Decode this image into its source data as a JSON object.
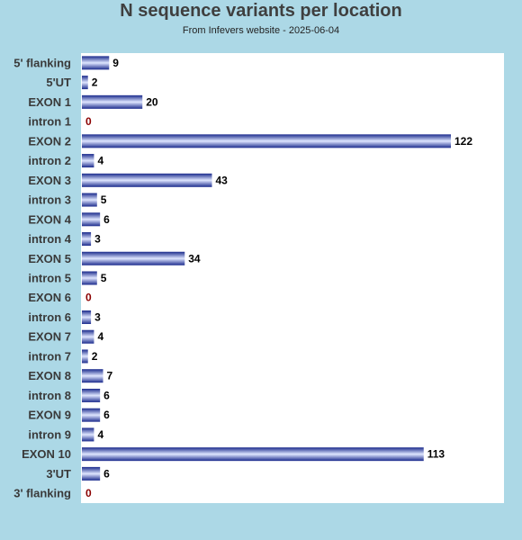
{
  "chart_data": {
    "type": "bar",
    "orientation": "horizontal",
    "title": "N sequence variants per location",
    "subtitle": "From Infevers website - 2025-06-04",
    "categories": [
      "5' flanking",
      "5'UT",
      "EXON 1",
      "intron 1",
      "EXON 2",
      "intron 2",
      "EXON 3",
      "intron 3",
      "EXON 4",
      "intron 4",
      "EXON 5",
      "intron 5",
      "EXON 6",
      "intron 6",
      "EXON 7",
      "intron 7",
      "EXON 8",
      "intron 8",
      "EXON 9",
      "intron 9",
      "EXON 10",
      "3'UT",
      "3' flanking"
    ],
    "values": [
      9,
      2,
      20,
      0,
      122,
      4,
      43,
      5,
      6,
      3,
      34,
      5,
      0,
      3,
      4,
      2,
      7,
      6,
      6,
      4,
      113,
      6,
      0
    ],
    "xlim": [
      0,
      140
    ],
    "grid": false,
    "colors": {
      "bar_dark": "#1a2a8c",
      "bar_light": "#dfe6ff",
      "zero_label": "#8b0000",
      "value_label": "#000000",
      "plot_background": "#ffffff",
      "page_background": "#acd8e6"
    }
  }
}
